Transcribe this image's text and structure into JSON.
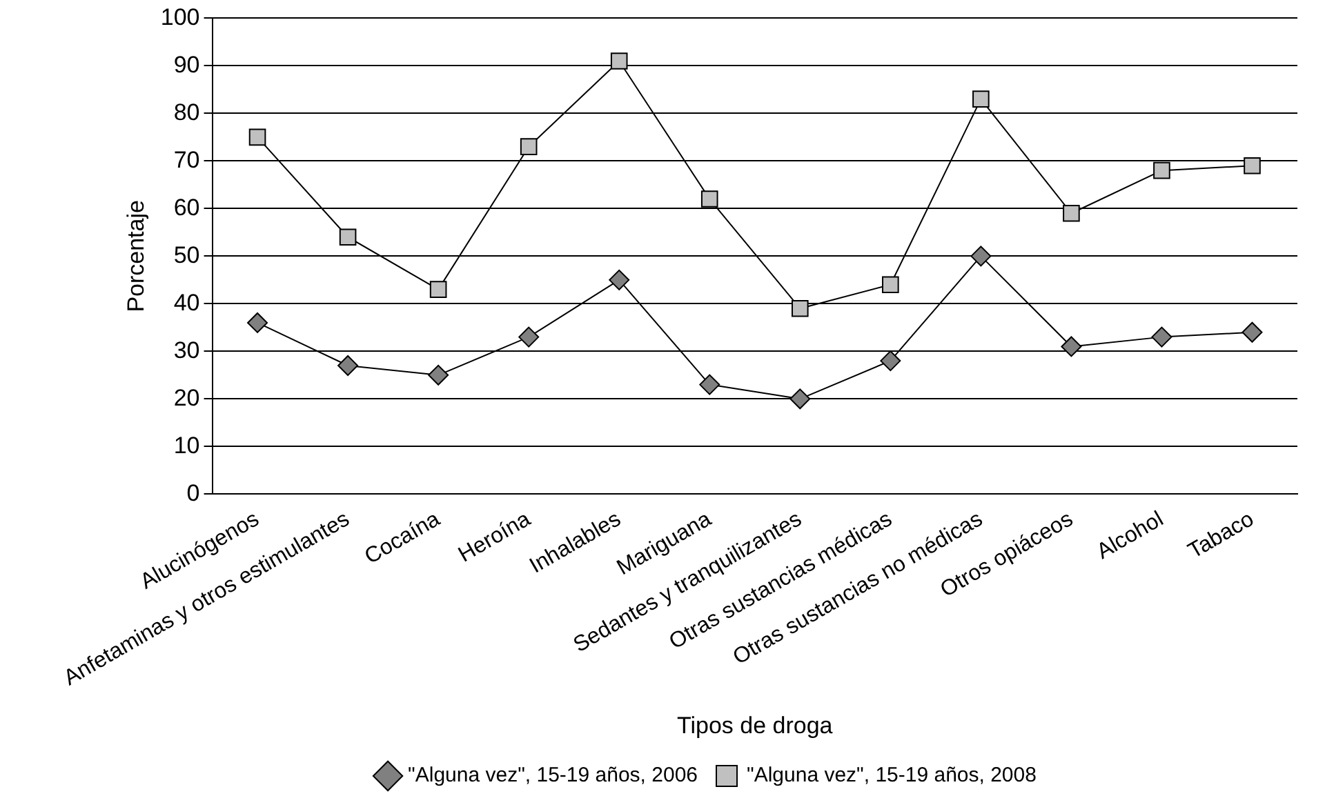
{
  "chart_data": {
    "type": "line",
    "xlabel": "Tipos de droga",
    "ylabel": "Porcentaje",
    "categories": [
      "Alucinógenos",
      "Anfetaminas y otros estimulantes",
      "Cocaína",
      "Heroína",
      "Inhalables",
      "Mariguana",
      "Sedantes y tranquilizantes",
      "Otras sustancias médicas",
      "Otras sustancias no médicas",
      "Otros opiáceos",
      "Alcohol",
      "Tabaco"
    ],
    "series": [
      {
        "name": "\"Alguna vez\", 15-19 años, 2006",
        "color": "#808080",
        "marker": "diamond",
        "values": [
          36,
          27,
          25,
          33,
          45,
          23,
          20,
          28,
          50,
          31,
          33,
          34
        ]
      },
      {
        "name": "\"Alguna vez\", 15-19 años, 2008",
        "color": "#c0c0c0",
        "marker": "square",
        "values": [
          75,
          54,
          43,
          73,
          91,
          62,
          39,
          44,
          83,
          59,
          68,
          69
        ]
      }
    ],
    "ylim": [
      0,
      100
    ],
    "yticks": [
      0,
      10,
      20,
      30,
      40,
      50,
      60,
      70,
      80,
      90,
      100
    ],
    "grid": "y",
    "legend": "bottom",
    "line_style": "solid"
  }
}
